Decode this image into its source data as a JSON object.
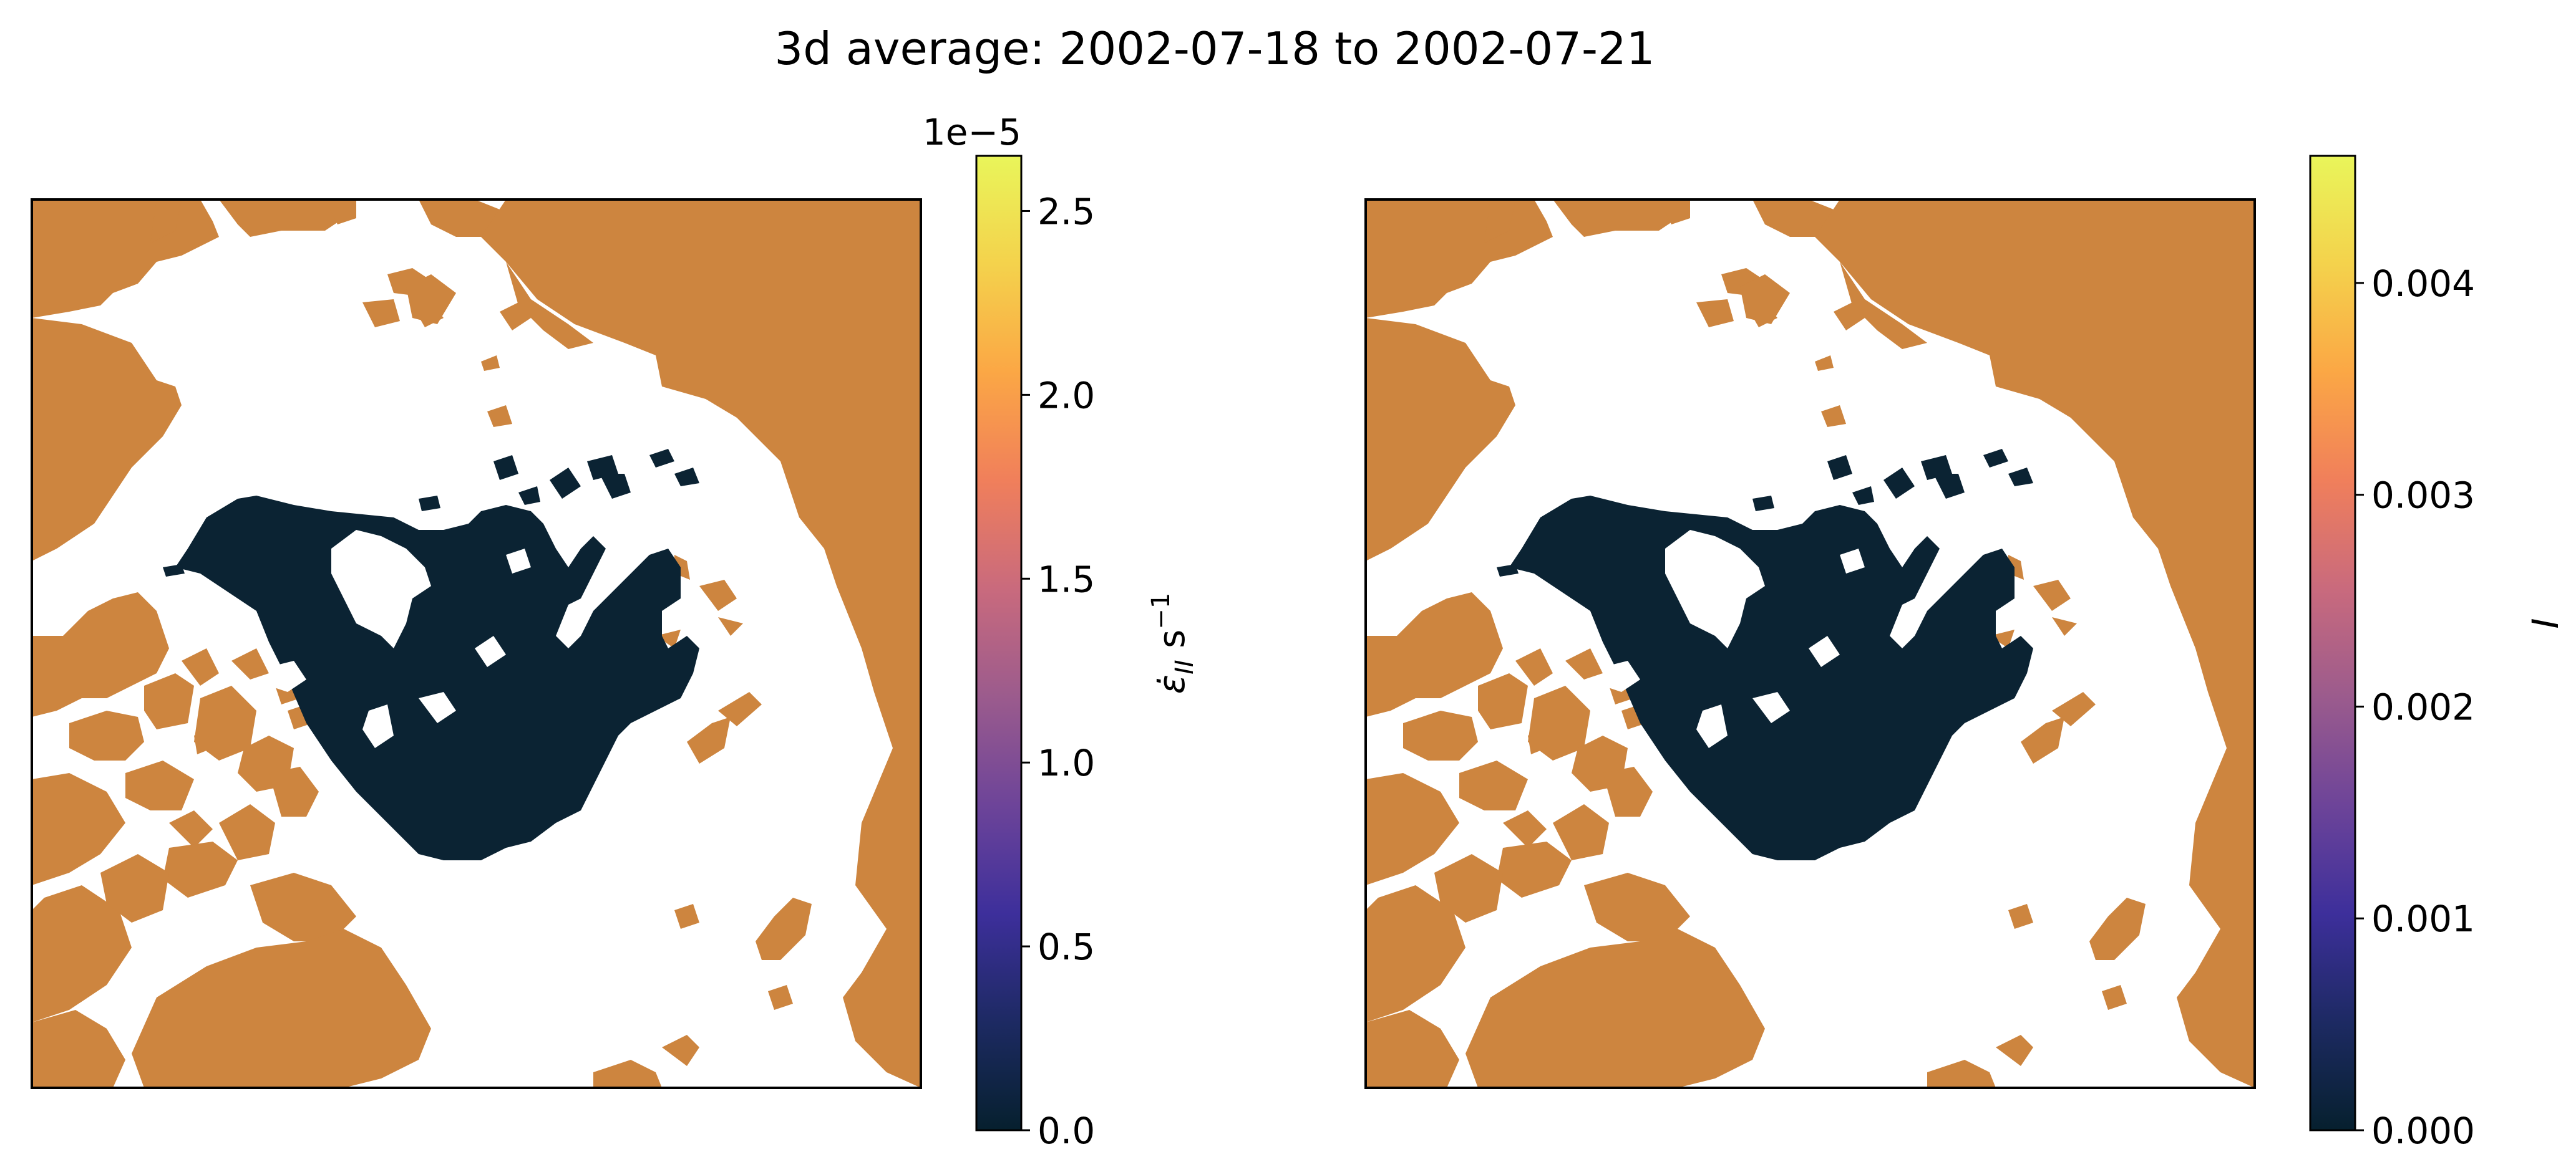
{
  "figure": {
    "title": "3d average: 2002-07-18 to 2002-07-21"
  },
  "colors": {
    "land": "#cd853f",
    "ice_low": "#0b2333",
    "ocean": "#ffffff",
    "frame": "#000000",
    "colormap": [
      "#06202e",
      "#1d2a63",
      "#3d2f9b",
      "#6d4499",
      "#9b5b8d",
      "#c96a7d",
      "#f07f5b",
      "#fba745",
      "#f4d24c",
      "#e9f55a"
    ]
  },
  "panels": [
    {
      "map_name": "strain-rate-map",
      "colorbar": {
        "offset_text": "1e−5",
        "label_main": "ε̇",
        "label_sub": "II",
        "label_unit": " s",
        "label_exp": "−1",
        "range": [
          0,
          2.65
        ],
        "ticks": [
          0.0,
          0.5,
          1.0,
          1.5,
          2.0,
          2.5
        ],
        "tick_labels": [
          "0.0",
          "0.5",
          "1.0",
          "1.5",
          "2.0",
          "2.5"
        ]
      }
    },
    {
      "map_name": "index-map",
      "colorbar": {
        "offset_text": "",
        "label_main": "I",
        "label_sub": "",
        "label_unit": "",
        "label_exp": "",
        "range": [
          0,
          0.0046
        ],
        "ticks": [
          0.0,
          0.001,
          0.002,
          0.003,
          0.004
        ],
        "tick_labels": [
          "0.000",
          "0.001",
          "0.002",
          "0.003",
          "0.004"
        ]
      }
    }
  ]
}
